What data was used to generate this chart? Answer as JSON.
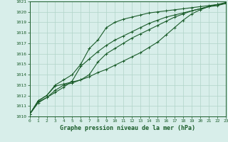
{
  "xlabel": "Graphe pression niveau de la mer (hPa)",
  "ylim": [
    1010,
    1021
  ],
  "xlim": [
    0,
    23
  ],
  "yticks": [
    1010,
    1011,
    1012,
    1013,
    1014,
    1015,
    1016,
    1017,
    1018,
    1019,
    1020,
    1021
  ],
  "xticks": [
    0,
    1,
    2,
    3,
    4,
    5,
    6,
    7,
    8,
    9,
    10,
    11,
    12,
    13,
    14,
    15,
    16,
    17,
    18,
    19,
    20,
    21,
    22,
    23
  ],
  "bg_color": "#d8eeea",
  "grid_color": "#b0d4c8",
  "line_color": "#1a5c2a",
  "series": [
    [
      1010.2,
      1011.5,
      1012.0,
      1012.9,
      1013.1,
      1013.3,
      1013.5,
      1013.8,
      1014.2,
      1014.5,
      1014.9,
      1015.3,
      1015.7,
      1016.1,
      1016.6,
      1017.1,
      1017.8,
      1018.5,
      1019.2,
      1019.8,
      1020.2,
      1020.5,
      1020.7,
      1020.8
    ],
    [
      1010.2,
      1011.4,
      1011.8,
      1012.5,
      1013.0,
      1013.2,
      1013.5,
      1014.0,
      1015.2,
      1016.0,
      1016.5,
      1017.0,
      1017.5,
      1017.9,
      1018.3,
      1018.7,
      1019.1,
      1019.5,
      1019.8,
      1020.1,
      1020.3,
      1020.5,
      1020.7,
      1020.8
    ],
    [
      1010.2,
      1011.3,
      1011.8,
      1012.3,
      1012.8,
      1013.4,
      1014.8,
      1015.5,
      1016.2,
      1016.8,
      1017.3,
      1017.7,
      1018.1,
      1018.5,
      1018.9,
      1019.2,
      1019.5,
      1019.7,
      1019.9,
      1020.1,
      1020.3,
      1020.5,
      1020.6,
      1020.8
    ],
    [
      1010.2,
      1011.5,
      1012.0,
      1013.0,
      1013.5,
      1014.0,
      1015.0,
      1016.5,
      1017.3,
      1018.5,
      1019.0,
      1019.3,
      1019.5,
      1019.7,
      1019.9,
      1020.0,
      1020.1,
      1020.2,
      1020.3,
      1020.4,
      1020.5,
      1020.6,
      1020.7,
      1020.9
    ]
  ],
  "marker": "+",
  "markersize": 3,
  "linewidth": 0.8,
  "tick_fontsize": 4.5,
  "xlabel_fontsize": 6.0
}
